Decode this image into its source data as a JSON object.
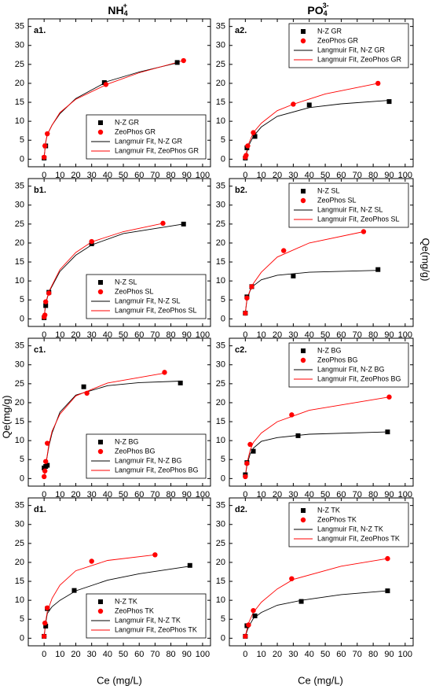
{
  "figure": {
    "column_titles": [
      {
        "base": "NH",
        "sub": "4",
        "sup": "+"
      },
      {
        "base": "PO",
        "sub": "4",
        "sup": "3-"
      }
    ],
    "x_label": "Ce (mg/L)",
    "y_label": "Qe(mg/g)"
  },
  "chart_data": [
    {
      "type": "scatter",
      "panel_label": "a1.",
      "legend_position": "lower right",
      "xlim": [
        -10,
        105
      ],
      "xticks": [
        0,
        10,
        20,
        30,
        40,
        50,
        60,
        70,
        80,
        90,
        100
      ],
      "ylim": [
        -2,
        37
      ],
      "yticks": [
        0,
        5,
        10,
        15,
        20,
        25,
        30,
        35
      ],
      "series": [
        {
          "name": "N-Z GR",
          "color": "#000000",
          "marker": "square",
          "x": [
            0,
            1,
            38,
            84
          ],
          "values": [
            0.3,
            3.5,
            20.2,
            25.5
          ]
        },
        {
          "name": "ZeoPhos GR",
          "color": "#ff0000",
          "marker": "circle",
          "x": [
            0,
            0.5,
            2,
            39,
            88
          ],
          "values": [
            0.5,
            3.5,
            6.7,
            19.7,
            26
          ]
        },
        {
          "name": "Langmuir Fit, N-Z GR",
          "color": "#000000",
          "marker": "line",
          "x": [
            0,
            1,
            2,
            5,
            10,
            20,
            40,
            60,
            85
          ],
          "values": [
            0.5,
            4.5,
            6.5,
            9,
            12,
            16,
            20.5,
            23,
            25.5
          ]
        },
        {
          "name": "Langmuir Fit, ZeoPhos GR",
          "color": "#ff0000",
          "marker": "line",
          "x": [
            0,
            1,
            2,
            5,
            10,
            20,
            40,
            60,
            88
          ],
          "values": [
            0.5,
            4.5,
            6.5,
            9,
            12.3,
            15.8,
            19.8,
            22.8,
            26
          ]
        }
      ]
    },
    {
      "type": "scatter",
      "panel_label": "a2.",
      "legend_position": "upper right",
      "xlim": [
        -10,
        105
      ],
      "xticks": [
        0,
        10,
        20,
        30,
        40,
        50,
        60,
        70,
        80,
        90,
        100
      ],
      "ylim": [
        -2,
        37
      ],
      "yticks": [
        0,
        5,
        10,
        15,
        20,
        25,
        30,
        35
      ],
      "series": [
        {
          "name": "N-Z GR",
          "color": "#000000",
          "marker": "square",
          "x": [
            0,
            1,
            6,
            40,
            90
          ],
          "values": [
            0.3,
            3,
            6,
            14.3,
            15.2
          ]
        },
        {
          "name": "ZeoPhos GR",
          "color": "#ff0000",
          "marker": "circle",
          "x": [
            0,
            0.5,
            1.5,
            5,
            30,
            83
          ],
          "values": [
            0.5,
            1,
            3.5,
            7,
            14.5,
            20
          ]
        },
        {
          "name": "Langmuir Fit, N-Z GR",
          "color": "#000000",
          "marker": "line",
          "x": [
            0,
            2,
            5,
            10,
            20,
            40,
            60,
            90
          ],
          "values": [
            0.3,
            3.5,
            6,
            8.5,
            11.3,
            13.6,
            14.6,
            15.5
          ]
        },
        {
          "name": "Langmuir Fit, ZeoPhos GR",
          "color": "#ff0000",
          "marker": "line",
          "x": [
            0,
            2,
            5,
            10,
            20,
            30,
            50,
            83
          ],
          "values": [
            0.5,
            4,
            7,
            9.5,
            12.8,
            14.5,
            17.2,
            20
          ]
        }
      ]
    },
    {
      "type": "scatter",
      "panel_label": "b1.",
      "legend_position": "lower right",
      "xlim": [
        -10,
        105
      ],
      "xticks": [
        0,
        10,
        20,
        30,
        40,
        50,
        60,
        70,
        80,
        90,
        100
      ],
      "ylim": [
        -2,
        37
      ],
      "yticks": [
        0,
        5,
        10,
        15,
        20,
        25,
        30,
        35
      ],
      "series": [
        {
          "name": "N-Z SL",
          "color": "#000000",
          "marker": "square",
          "x": [
            0,
            1,
            3,
            30,
            88
          ],
          "values": [
            0.3,
            3.5,
            7,
            19.8,
            25
          ]
        },
        {
          "name": "ZeoPhos SL",
          "color": "#ff0000",
          "marker": "circle",
          "x": [
            0,
            0.5,
            1,
            3,
            30,
            75
          ],
          "values": [
            0.5,
            1,
            4.5,
            6.8,
            20.4,
            25.2
          ]
        },
        {
          "name": "Langmuir Fit, N-Z SL",
          "color": "#000000",
          "marker": "line",
          "x": [
            0,
            1,
            3,
            10,
            20,
            30,
            50,
            88
          ],
          "values": [
            0.3,
            4,
            7,
            12.5,
            16.8,
            19.5,
            22.5,
            25
          ]
        },
        {
          "name": "Langmuir Fit, ZeoPhos SL",
          "color": "#ff0000",
          "marker": "line",
          "x": [
            0,
            1,
            3,
            10,
            20,
            30,
            50,
            75
          ],
          "values": [
            0.5,
            4.2,
            7.2,
            13,
            17.5,
            20.3,
            23,
            25.2
          ]
        }
      ]
    },
    {
      "type": "scatter",
      "panel_label": "b2.",
      "legend_position": "upper right",
      "xlim": [
        -10,
        105
      ],
      "xticks": [
        0,
        10,
        20,
        30,
        40,
        50,
        60,
        70,
        80,
        90,
        100
      ],
      "ylim": [
        -2,
        37
      ],
      "yticks": [
        0,
        5,
        10,
        15,
        20,
        25,
        30,
        35
      ],
      "series": [
        {
          "name": "N-Z SL",
          "color": "#000000",
          "marker": "square",
          "x": [
            0,
            1,
            4,
            30,
            83
          ],
          "values": [
            1.5,
            5.8,
            8.5,
            11.3,
            13
          ]
        },
        {
          "name": "ZeoPhos SL",
          "color": "#ff0000",
          "marker": "circle",
          "x": [
            0,
            1,
            4,
            24,
            74
          ],
          "values": [
            1.5,
            5.5,
            8.5,
            18,
            23
          ]
        },
        {
          "name": "Langmuir Fit, N-Z SL",
          "color": "#000000",
          "marker": "line",
          "x": [
            0,
            1,
            3,
            5,
            10,
            20,
            40,
            83
          ],
          "values": [
            1.5,
            5,
            7.5,
            8.7,
            10.3,
            11.5,
            12.3,
            12.8
          ]
        },
        {
          "name": "Langmuir Fit, ZeoPhos SL",
          "color": "#ff0000",
          "marker": "line",
          "x": [
            0,
            1,
            3,
            5,
            10,
            20,
            40,
            74
          ],
          "values": [
            1.5,
            5.3,
            7.6,
            9.3,
            12.3,
            16.3,
            20,
            23
          ]
        }
      ]
    },
    {
      "type": "scatter",
      "panel_label": "c1.",
      "legend_position": "lower right",
      "xlim": [
        -10,
        105
      ],
      "xticks": [
        0,
        10,
        20,
        30,
        40,
        50,
        60,
        70,
        80,
        90,
        100
      ],
      "ylim": [
        -2,
        37
      ],
      "yticks": [
        0,
        5,
        10,
        15,
        20,
        25,
        30,
        35
      ],
      "series": [
        {
          "name": "N-Z BG",
          "color": "#000000",
          "marker": "square",
          "x": [
            0,
            1,
            2,
            25,
            86
          ],
          "values": [
            2.8,
            3.2,
            3.5,
            24.2,
            25.2
          ]
        },
        {
          "name": "ZeoPhos BG",
          "color": "#ff0000",
          "marker": "circle",
          "x": [
            0,
            0.5,
            1,
            2,
            27,
            76
          ],
          "values": [
            0.5,
            2,
            4.5,
            9.3,
            22.5,
            28
          ]
        },
        {
          "name": "Langmuir Fit, N-Z BG",
          "color": "#000000",
          "marker": "line",
          "x": [
            0,
            1,
            3,
            5,
            10,
            20,
            40,
            60,
            86
          ],
          "values": [
            0,
            3.5,
            8.5,
            12,
            17.5,
            22,
            24.5,
            25.3,
            25.7
          ]
        },
        {
          "name": "Langmuir Fit, ZeoPhos BG",
          "color": "#ff0000",
          "marker": "line",
          "x": [
            0,
            1,
            3,
            5,
            10,
            20,
            40,
            76
          ],
          "values": [
            0,
            3.5,
            9,
            12.5,
            17,
            21.8,
            25.2,
            27.8
          ]
        }
      ]
    },
    {
      "type": "scatter",
      "panel_label": "c2.",
      "legend_position": "upper right",
      "xlim": [
        -10,
        105
      ],
      "xticks": [
        0,
        10,
        20,
        30,
        40,
        50,
        60,
        70,
        80,
        90,
        100
      ],
      "ylim": [
        -2,
        37
      ],
      "yticks": [
        0,
        5,
        10,
        15,
        20,
        25,
        30,
        35
      ],
      "series": [
        {
          "name": "N-Z BG",
          "color": "#000000",
          "marker": "square",
          "x": [
            0,
            1,
            5,
            33,
            89
          ],
          "values": [
            1,
            4.2,
            7.2,
            11.3,
            12.3
          ]
        },
        {
          "name": "ZeoPhos BG",
          "color": "#ff0000",
          "marker": "circle",
          "x": [
            0,
            1,
            3,
            29,
            90
          ],
          "values": [
            0.5,
            4,
            9,
            16.8,
            21.5
          ]
        },
        {
          "name": "Langmuir Fit, N-Z BG",
          "color": "#000000",
          "marker": "line",
          "x": [
            0,
            1,
            3,
            5,
            10,
            20,
            40,
            89
          ],
          "values": [
            0.5,
            3.5,
            6.5,
            8,
            9.8,
            10.8,
            11.7,
            12.3
          ]
        },
        {
          "name": "Langmuir Fit, ZeoPhos BG",
          "color": "#ff0000",
          "marker": "line",
          "x": [
            0,
            1,
            3,
            5,
            10,
            20,
            40,
            90
          ],
          "values": [
            0.5,
            4,
            7.5,
            9.5,
            12,
            15,
            18,
            21.5
          ]
        }
      ]
    },
    {
      "type": "scatter",
      "panel_label": "d1.",
      "legend_position": "lower right",
      "xlim": [
        -10,
        105
      ],
      "xticks": [
        0,
        10,
        20,
        30,
        40,
        50,
        60,
        70,
        80,
        90,
        100
      ],
      "ylim": [
        -2,
        37
      ],
      "yticks": [
        0,
        5,
        10,
        15,
        20,
        25,
        30,
        35
      ],
      "series": [
        {
          "name": "N-Z TK",
          "color": "#000000",
          "marker": "square",
          "x": [
            0,
            1,
            2,
            19,
            92
          ],
          "values": [
            0.5,
            3.2,
            7.8,
            12.6,
            19.2
          ]
        },
        {
          "name": "ZeoPhos TK",
          "color": "#ff0000",
          "marker": "circle",
          "x": [
            0,
            0.5,
            2,
            30,
            70
          ],
          "values": [
            0.5,
            4,
            8,
            20.3,
            22
          ]
        },
        {
          "name": "Langmuir Fit, N-Z TK",
          "color": "#000000",
          "marker": "line",
          "x": [
            0,
            1,
            2,
            5,
            10,
            20,
            40,
            60,
            92
          ],
          "values": [
            0.5,
            4,
            6.5,
            8.3,
            10,
            12.5,
            15.3,
            17,
            19
          ]
        },
        {
          "name": "Langmuir Fit, ZeoPhos TK",
          "color": "#ff0000",
          "marker": "line",
          "x": [
            0,
            1,
            2,
            5,
            10,
            20,
            40,
            70
          ],
          "values": [
            0.5,
            4.5,
            7,
            10.5,
            14,
            17.8,
            20.5,
            22
          ]
        }
      ]
    },
    {
      "type": "scatter",
      "panel_label": "d2.",
      "legend_position": "upper right",
      "xlim": [
        -10,
        105
      ],
      "xticks": [
        0,
        10,
        20,
        30,
        40,
        50,
        60,
        70,
        80,
        90,
        100
      ],
      "ylim": [
        -2,
        37
      ],
      "yticks": [
        0,
        5,
        10,
        15,
        20,
        25,
        30,
        35
      ],
      "series": [
        {
          "name": "N-Z TK",
          "color": "#000000",
          "marker": "square",
          "x": [
            0,
            1,
            6,
            35,
            89
          ],
          "values": [
            0.5,
            3.3,
            5.9,
            9.7,
            12.5
          ]
        },
        {
          "name": "ZeoPhos TK",
          "color": "#ff0000",
          "marker": "circle",
          "x": [
            0,
            2,
            5,
            29,
            89
          ],
          "values": [
            0.5,
            3.5,
            7.3,
            15.7,
            21
          ]
        },
        {
          "name": "Langmuir Fit, N-Z TK",
          "color": "#000000",
          "marker": "line",
          "x": [
            0,
            2,
            5,
            10,
            20,
            35,
            60,
            89
          ],
          "values": [
            0.5,
            3,
            5.2,
            6.8,
            8.7,
            10,
            11.5,
            12.5
          ]
        },
        {
          "name": "Langmuir Fit, ZeoPhos TK",
          "color": "#ff0000",
          "marker": "line",
          "x": [
            0,
            2,
            5,
            10,
            20,
            30,
            60,
            89
          ],
          "values": [
            0.5,
            4,
            6.8,
            9.5,
            13,
            15.5,
            19,
            21
          ]
        }
      ]
    }
  ]
}
